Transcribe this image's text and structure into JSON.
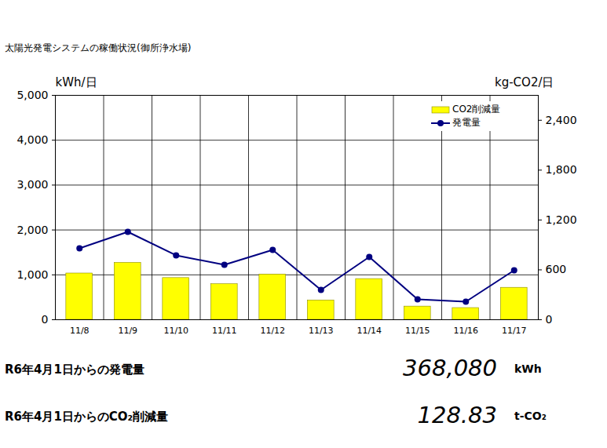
{
  "chart_data": {
    "type": "bar",
    "title": "太陽光発電システムの稼働状況(御所浄水場)",
    "categories": [
      "11/8",
      "11/9",
      "11/10",
      "11/11",
      "11/12",
      "11/13",
      "11/14",
      "11/15",
      "11/16",
      "11/17"
    ],
    "series": [
      {
        "name": "CO2削減量",
        "type": "bar",
        "color": "#ffff00",
        "axis": "y2",
        "values": [
          557,
          685,
          502,
          428,
          545,
          232,
          490,
          159,
          141,
          385
        ]
      },
      {
        "name": "発電量",
        "type": "line",
        "color": "#000080",
        "marker": "circle",
        "values": [
          1591,
          1958,
          1434,
          1224,
          1556,
          664,
          1399,
          455,
          402,
          1101
        ]
      }
    ],
    "ylabel": "kWh/日",
    "y2label": "kg-CO2/日",
    "ylim": [
      0,
      5000
    ],
    "yticks": [
      0,
      {
        "value": 1000,
        "label": "1,000"
      },
      {
        "value": 2000,
        "label": "2,000"
      },
      {
        "value": 3000,
        "label": "3,000"
      },
      {
        "value": 4000,
        "label": "4,000"
      },
      {
        "value": 5000,
        "label": "5,000"
      }
    ],
    "y2lim": [
      0,
      2700
    ],
    "y2ticks": [
      0,
      600,
      {
        "value": 1200,
        "label": "1,200"
      },
      {
        "value": 1800,
        "label": "1,800"
      },
      {
        "value": 2400,
        "label": "2,400"
      }
    ],
    "grid": true,
    "legend": "top-right",
    "annotations": [
      {
        "text": "R6年4月1日からの発電量",
        "value": 368080,
        "value_label": "368,080",
        "unit": "kWh"
      },
      {
        "text": "R6年4月1日からのCO₂削減量",
        "value": 128.83,
        "value_label": "128.83",
        "unit": "t-CO₂"
      }
    ]
  }
}
